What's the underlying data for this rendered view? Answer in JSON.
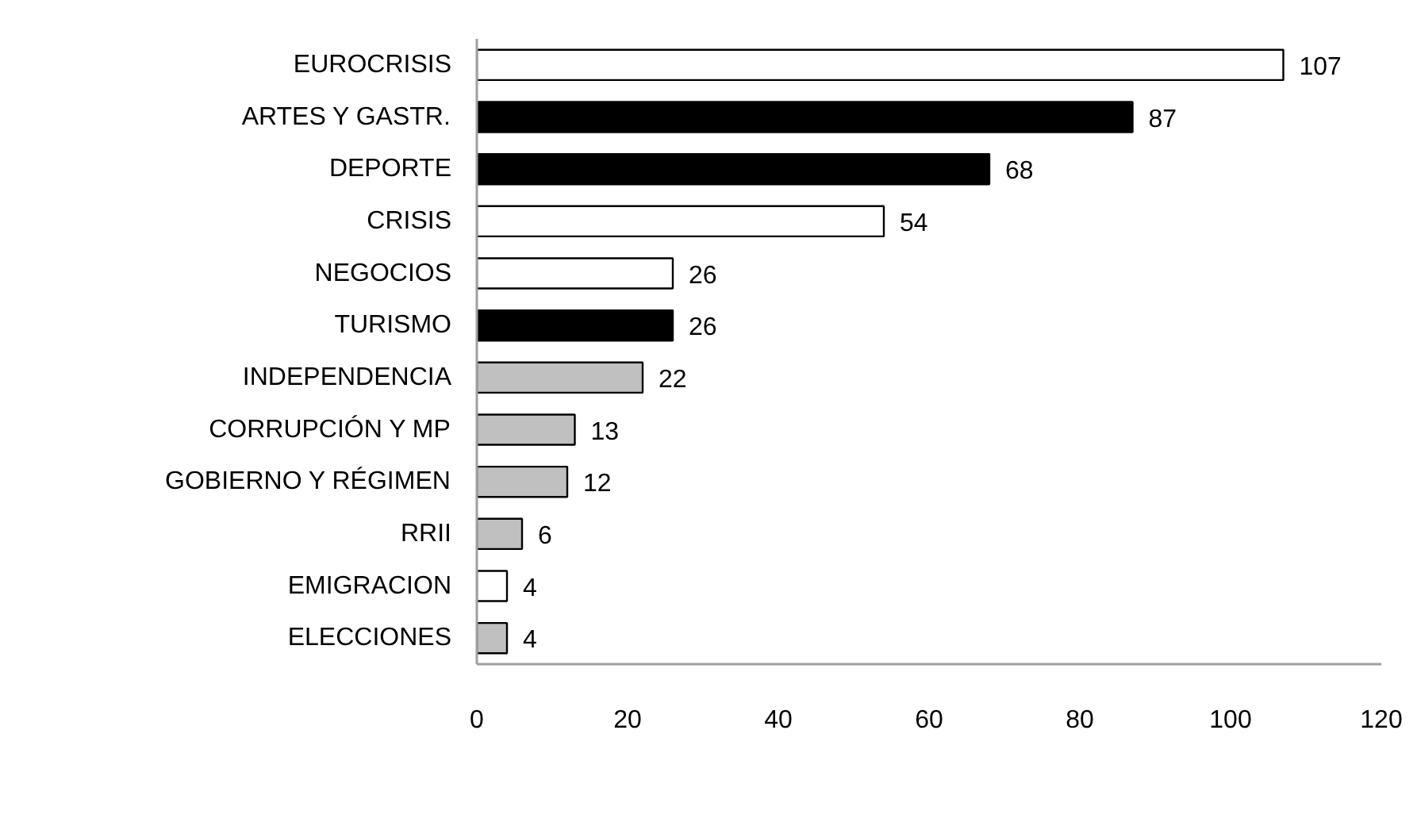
{
  "chart_data": {
    "type": "bar",
    "orientation": "horizontal",
    "categories": [
      "EUROCRISIS",
      "ARTES Y GASTR.",
      "DEPORTE",
      "CRISIS",
      "NEGOCIOS",
      "TURISMO",
      "INDEPENDENCIA",
      "CORRUPCIÓN Y MP",
      "GOBIERNO Y RÉGIMEN",
      "RRII",
      "EMIGRACION",
      "ELECCIONES"
    ],
    "values": [
      107,
      87,
      68,
      54,
      26,
      26,
      22,
      13,
      12,
      6,
      4,
      4
    ],
    "colors": [
      "#ffffff",
      "#000000",
      "#000000",
      "#ffffff",
      "#ffffff",
      "#000000",
      "#c0c0c0",
      "#c0c0c0",
      "#c0c0c0",
      "#c0c0c0",
      "#ffffff",
      "#c0c0c0"
    ],
    "xlim": [
      0,
      120
    ],
    "xticks": [
      0,
      20,
      40,
      60,
      80,
      100,
      120
    ],
    "data_labels": true
  }
}
